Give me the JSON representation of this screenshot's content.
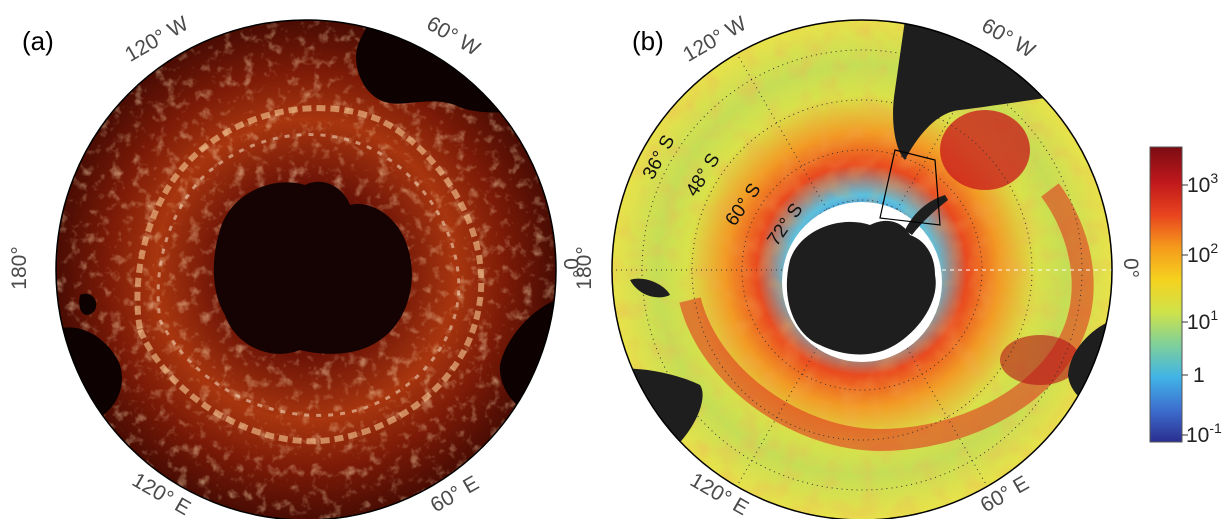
{
  "panels": [
    {
      "label": "(a)",
      "lon_labels": {
        "w120": "120° W",
        "w60": "60° W",
        "deg180": "180°",
        "deg0": "0°",
        "e120": "120° E",
        "e60": "60° E"
      }
    },
    {
      "label": "(b)",
      "lon_labels": {
        "w120": "120° W",
        "w60": "60° W",
        "deg180": "180°",
        "deg0": "0°",
        "e120": "120° E",
        "e60": "60° E"
      },
      "lat_labels": [
        "36° S",
        "48° S",
        "60° S",
        "72° S"
      ]
    }
  ],
  "colorbar": {
    "ticks": [
      {
        "base": "10",
        "exp": "3"
      },
      {
        "base": "10",
        "exp": "2"
      },
      {
        "base": "10",
        "exp": "1"
      },
      {
        "base": "1",
        "exp": ""
      },
      {
        "base": "10",
        "exp": "-1"
      }
    ],
    "colors": [
      "#2a2e8f",
      "#3d6fd0",
      "#41b4e6",
      "#7fd09a",
      "#cfe24a",
      "#f5d21e",
      "#f59a1c",
      "#e8441e",
      "#c0181c",
      "#7a0c12"
    ]
  },
  "colors": {
    "land": "#1a1a1a",
    "ice": "#ffffff",
    "eddy_bg": "#5a0e04",
    "eddy_bright": "#ffe7b0"
  }
}
